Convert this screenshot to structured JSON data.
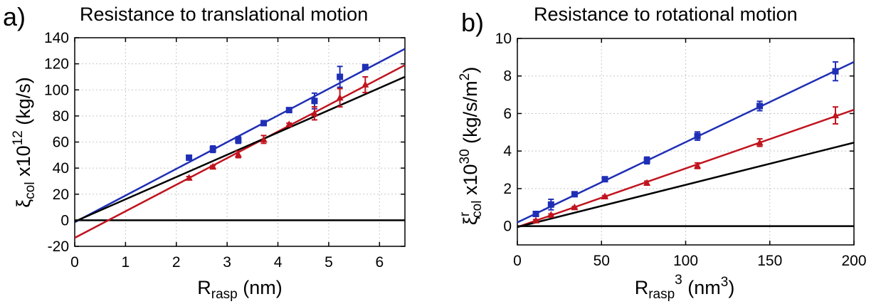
{
  "chart_data": [
    {
      "panel_label": "a)",
      "type": "scatter",
      "title": "Resistance to translational motion",
      "xlabel": {
        "main": "R",
        "sub": "rasp",
        "rest": " (nm)"
      },
      "ylabel": {
        "main": "ξ",
        "sub": "col",
        "rest": " x10",
        "sup": "12",
        "tail": " (kg/s)"
      },
      "xlim": [
        0,
        6.5
      ],
      "ylim": [
        -20,
        140
      ],
      "xticks": [
        0,
        1,
        2,
        3,
        4,
        5,
        6
      ],
      "yticks": [
        -20,
        0,
        20,
        40,
        60,
        80,
        100,
        120,
        140
      ],
      "grid": true,
      "colors": {
        "blue": "#1f2fb5",
        "red": "#c0141e",
        "black": "#000000"
      },
      "series": [
        {
          "color": "blue",
          "marker": "square",
          "x": [
            2.25,
            2.72,
            3.22,
            3.72,
            4.22,
            4.72,
            5.22,
            5.72
          ],
          "y": [
            48,
            54.5,
            61.5,
            74.5,
            84.5,
            91.5,
            110,
            117.5
          ],
          "err": [
            1.5,
            2.5,
            2.5,
            1.5,
            1.5,
            6,
            8,
            1.5
          ]
        },
        {
          "color": "red",
          "marker": "triangle",
          "x": [
            2.25,
            2.72,
            3.22,
            3.72,
            4.22,
            4.72,
            5.22,
            5.72
          ],
          "y": [
            32.5,
            41,
            50.5,
            62,
            73.5,
            82,
            94,
            104
          ],
          "err": [
            1,
            1,
            2.5,
            3,
            1,
            5,
            7,
            6
          ]
        }
      ],
      "fit_lines": [
        {
          "color": "blue",
          "x": [
            0,
            6.5
          ],
          "y": [
            -1.5,
            131.5
          ]
        },
        {
          "color": "red",
          "x": [
            0,
            6.5
          ],
          "y": [
            -13.5,
            119
          ]
        },
        {
          "color": "black",
          "x": [
            0,
            6.5
          ],
          "y": [
            -1,
            110
          ]
        }
      ],
      "zero_line": true
    },
    {
      "panel_label": "b)",
      "type": "scatter",
      "title": "Resistance to rotational motion",
      "xlabel": {
        "main": "R",
        "sub": "rasp",
        "sup": "3",
        "rest": " (nm",
        "sup2": "3",
        "tail": ")"
      },
      "ylabel": {
        "main": "ξ",
        "supr": "r",
        "sub": "col",
        "rest": " x10",
        "sup": "30",
        "tail": " (kg/s/m",
        "sup2": "2",
        "tail2": ")"
      },
      "xlim": [
        0,
        200
      ],
      "ylim": [
        -1,
        10
      ],
      "xticks": [
        0,
        50,
        100,
        150,
        200
      ],
      "yticks": [
        0,
        2,
        4,
        6,
        8,
        10
      ],
      "grid": true,
      "colors": {
        "blue": "#1f2fb5",
        "red": "#c0141e",
        "black": "#000000"
      },
      "series": [
        {
          "color": "blue",
          "marker": "square",
          "x": [
            11,
            20,
            34,
            52,
            77,
            107,
            144,
            189
          ],
          "y": [
            0.65,
            1.15,
            1.7,
            2.5,
            3.5,
            4.8,
            6.4,
            8.25
          ],
          "err": [
            0.1,
            0.28,
            0.08,
            0.06,
            0.18,
            0.22,
            0.25,
            0.5
          ]
        },
        {
          "color": "red",
          "marker": "triangle",
          "x": [
            11,
            20,
            34,
            52,
            77,
            107,
            144,
            189
          ],
          "y": [
            0.3,
            0.6,
            1.0,
            1.58,
            2.3,
            3.22,
            4.45,
            5.9
          ],
          "err": [
            0.05,
            0.05,
            0.05,
            0.05,
            0.1,
            0.15,
            0.2,
            0.45
          ]
        }
      ],
      "fit_lines": [
        {
          "color": "blue",
          "x": [
            0,
            200
          ],
          "y": [
            0.2,
            8.75
          ]
        },
        {
          "color": "red",
          "x": [
            0,
            200
          ],
          "y": [
            -0.05,
            6.2
          ]
        },
        {
          "color": "black",
          "x": [
            0,
            200
          ],
          "y": [
            -0.05,
            4.45
          ]
        }
      ],
      "zero_line": true
    }
  ]
}
